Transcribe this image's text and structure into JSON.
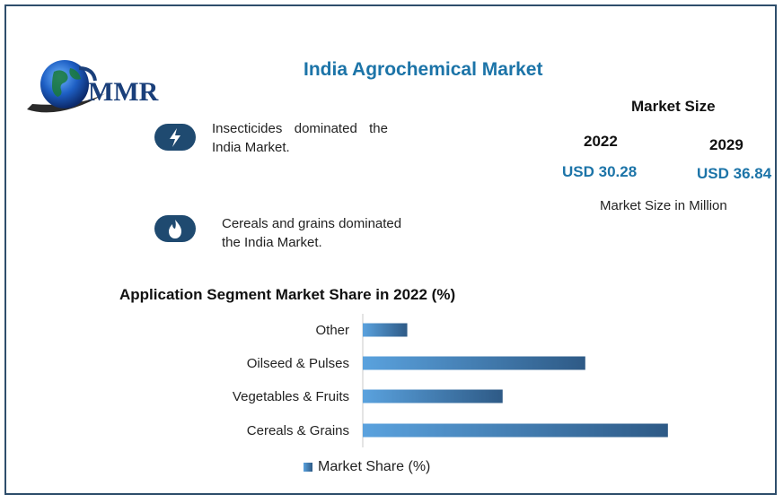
{
  "title": "India Agrochemical Market",
  "logo": {
    "text": "MMR"
  },
  "highlights": [
    {
      "icon": "lightning-icon",
      "text": "Insecticides dominated the India Market."
    },
    {
      "icon": "flame-icon",
      "text": "Cereals and grains dominated the India Market."
    }
  ],
  "market_size": {
    "heading": "Market Size",
    "years": [
      {
        "year": "2022",
        "value": "USD 30.28"
      },
      {
        "year": "2029",
        "value": "USD 36.84"
      }
    ],
    "note": "Market Size in Million"
  },
  "colors": {
    "accent": "#1c74a8",
    "bar_start": "#5aa2de",
    "bar_end": "#2e5a86",
    "icon_bg": "#1f4a70",
    "border": "#2e4e6b"
  },
  "chart_data": {
    "type": "bar",
    "orientation": "horizontal",
    "title": "Application Segment Market Share in 2022 (%)",
    "categories": [
      "Other",
      "Oilseed & Pulses",
      "Vegetables & Fruits",
      "Cereals & Grains"
    ],
    "series": [
      {
        "name": "Market Share (%)",
        "values": [
          7,
          35,
          22,
          48
        ]
      }
    ],
    "xlim": [
      0,
      50
    ],
    "grid": false,
    "legend": "bottom"
  }
}
